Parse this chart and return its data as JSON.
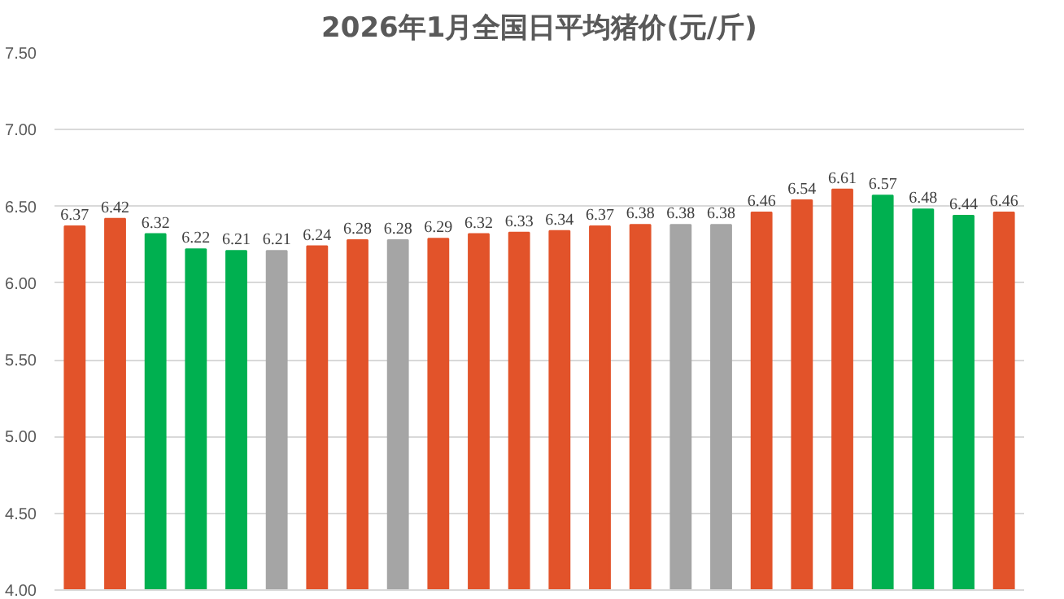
{
  "chart_data": {
    "type": "bar",
    "title": "2026年1月全国日平均猪价(元/斤)",
    "categories": [
      null,
      null,
      null,
      null,
      null,
      null,
      null,
      null,
      null,
      null,
      null,
      null,
      null,
      null,
      null,
      null,
      null,
      null,
      null,
      null,
      null,
      null,
      null,
      null
    ],
    "values": [
      6.37,
      6.42,
      6.32,
      6.22,
      6.21,
      6.21,
      6.24,
      6.28,
      6.28,
      6.29,
      6.32,
      6.33,
      6.34,
      6.37,
      6.38,
      6.38,
      6.38,
      6.46,
      6.54,
      6.61,
      6.57,
      6.48,
      6.44,
      6.46
    ],
    "colors": [
      "#e2532a",
      "#e2532a",
      "#00b050",
      "#00b050",
      "#00b050",
      "#a5a5a5",
      "#e2532a",
      "#e2532a",
      "#a5a5a5",
      "#e2532a",
      "#e2532a",
      "#e2532a",
      "#e2532a",
      "#e2532a",
      "#e2532a",
      "#a5a5a5",
      "#a5a5a5",
      "#e2532a",
      "#e2532a",
      "#e2532a",
      "#00b050",
      "#00b050",
      "#00b050",
      "#e2532a"
    ],
    "ylim": [
      4.0,
      7.5
    ],
    "yticks": [
      {
        "value": 4.0,
        "label": "4.00"
      },
      {
        "value": 4.5,
        "label": "4.50"
      },
      {
        "value": 5.0,
        "label": "5.00"
      },
      {
        "value": 5.5,
        "label": "5.50"
      },
      {
        "value": 6.0,
        "label": "6.00"
      },
      {
        "value": 6.5,
        "label": "6.50"
      },
      {
        "value": 7.0,
        "label": "7.00"
      },
      {
        "value": 7.5,
        "label": "7.50"
      }
    ],
    "grid": "y",
    "data_labels": true,
    "tick_labels": "y"
  }
}
